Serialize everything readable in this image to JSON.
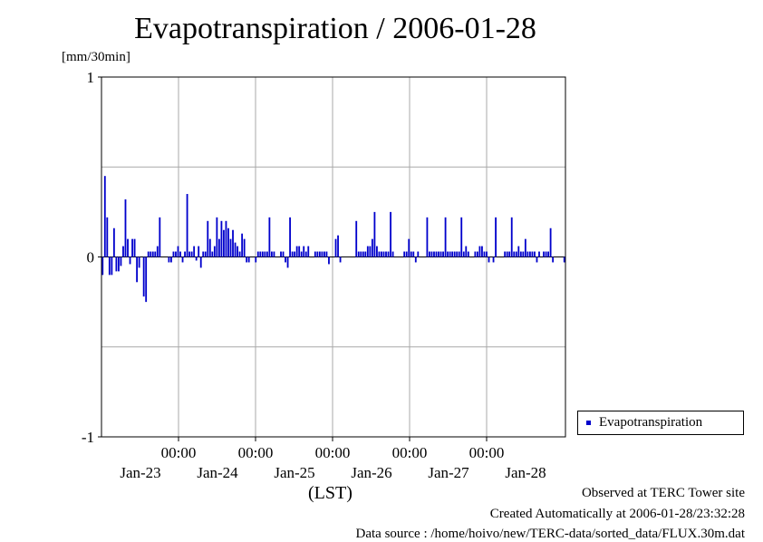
{
  "chart_data": {
    "type": "bar",
    "title": "Evapotranspiration / 2006-01-28",
    "ylabel": "[mm/30min]",
    "xlabel": "(LST)",
    "ylim": [
      -1,
      1
    ],
    "yticks": [
      "1",
      "0",
      "-1"
    ],
    "x_time_labels": [
      "00:00",
      "00:00",
      "00:00",
      "00:00",
      "00:00"
    ],
    "x_date_labels": [
      "Jan-23",
      "Jan-24",
      "Jan-25",
      "Jan-26",
      "Jan-27",
      "Jan-28"
    ],
    "grid": true,
    "legend_position": "bottom-right, outside plot",
    "series": [
      {
        "name": "Evapotranspiration",
        "color": "#0000cc",
        "values": [
          -0.1,
          0.45,
          0.22,
          -0.1,
          -0.1,
          0.16,
          -0.08,
          -0.08,
          -0.05,
          0.06,
          0.32,
          0.1,
          -0.04,
          0.1,
          0.1,
          -0.14,
          -0.06,
          0.0,
          -0.22,
          -0.25,
          0.03,
          0.03,
          0.03,
          0.03,
          0.06,
          0.22,
          0.0,
          0.0,
          0.0,
          -0.03,
          -0.03,
          0.03,
          0.03,
          0.06,
          0.03,
          -0.03,
          0.03,
          0.35,
          0.03,
          0.03,
          0.06,
          -0.02,
          0.06,
          -0.06,
          0.03,
          0.03,
          0.2,
          0.1,
          0.03,
          0.06,
          0.22,
          0.1,
          0.2,
          0.15,
          0.2,
          0.16,
          0.1,
          0.15,
          0.08,
          0.06,
          0.03,
          0.13,
          0.1,
          -0.03,
          -0.03,
          0.0,
          0.0,
          -0.03,
          0.03,
          0.03,
          0.03,
          0.03,
          0.03,
          0.22,
          0.03,
          0.03,
          0.0,
          0.0,
          0.03,
          0.03,
          -0.03,
          -0.06,
          0.22,
          0.03,
          0.03,
          0.06,
          0.06,
          0.03,
          0.06,
          0.03,
          0.06,
          0.0,
          0.0,
          0.03,
          0.03,
          0.03,
          0.03,
          0.03,
          0.03,
          -0.04,
          0.0,
          0.0,
          0.1,
          0.12,
          -0.03,
          0.0,
          0.0,
          0.0,
          0.0,
          0.0,
          0.0,
          0.2,
          0.03,
          0.03,
          0.03,
          0.03,
          0.06,
          0.06,
          0.1,
          0.25,
          0.06,
          0.03,
          0.03,
          0.03,
          0.03,
          0.03,
          0.25,
          0.03,
          0.0,
          0.0,
          0.0,
          0.0,
          0.03,
          0.03,
          0.1,
          0.03,
          0.03,
          -0.03,
          0.03,
          0.0,
          0.0,
          0.0,
          0.22,
          0.03,
          0.03,
          0.03,
          0.03,
          0.03,
          0.03,
          0.03,
          0.22,
          0.03,
          0.03,
          0.03,
          0.03,
          0.03,
          0.03,
          0.22,
          0.03,
          0.06,
          0.03,
          0.0,
          0.0,
          0.03,
          0.03,
          0.06,
          0.06,
          0.03,
          0.03,
          -0.03,
          0.0,
          -0.03,
          0.22,
          0.0,
          0.0,
          0.0,
          0.03,
          0.03,
          0.03,
          0.22,
          0.03,
          0.03,
          0.06,
          0.03,
          0.03,
          0.1,
          0.03,
          0.03,
          0.03,
          0.03,
          -0.03,
          0.03,
          0.0,
          0.03,
          0.03,
          0.03,
          0.16,
          -0.03,
          0.0,
          0.0,
          0.0,
          0.0,
          -0.03
        ]
      }
    ]
  },
  "footer": {
    "line1": "Observed at TERC Tower site",
    "line2": "Created Automatically at 2006-01-28/23:32:28",
    "line3": "Data source : /home/hoivo/new/TERC-data/sorted_data/FLUX.30m.dat"
  }
}
